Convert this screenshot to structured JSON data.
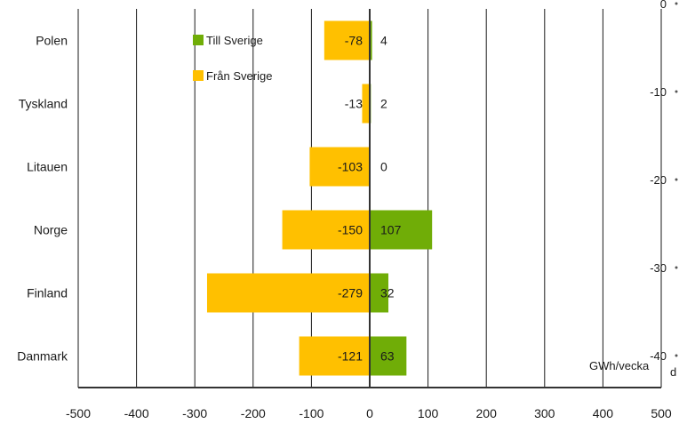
{
  "chart_data": {
    "type": "bar",
    "orientation": "horizontal",
    "categories": [
      "Polen",
      "Tyskland",
      "Litauen",
      "Norge",
      "Finland",
      "Danmark"
    ],
    "series": [
      {
        "name": "Till Sverige",
        "values": [
          4,
          2,
          0,
          107,
          32,
          63
        ],
        "color": "#70AD07"
      },
      {
        "name": "Från Sverige",
        "values": [
          -78,
          -13,
          -103,
          -150,
          -279,
          -121
        ],
        "color": "#FFC000"
      }
    ],
    "x_ticks": [
      "-500",
      "-400",
      "-300",
      "-200",
      "-100",
      "0",
      "100",
      "200",
      "300",
      "400",
      "500"
    ],
    "xlim": [
      -500,
      500
    ],
    "grid": "vertical",
    "legend_position": "top-left",
    "unit_label": "GWh/vecka",
    "unit_label_suffix": "d",
    "secondary_axis": {
      "ticks": [
        "0",
        "-10",
        "-20",
        "-30",
        "-40"
      ],
      "range": [
        -40,
        0
      ]
    }
  }
}
